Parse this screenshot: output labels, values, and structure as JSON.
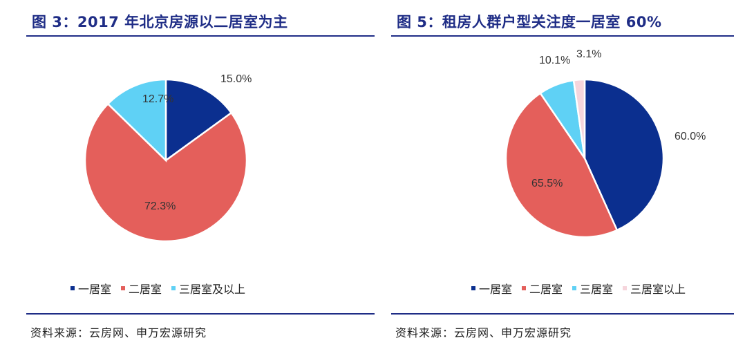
{
  "chart_data": [
    {
      "type": "pie",
      "title": "图 3：2017 年北京房源以二居室为主",
      "categories": [
        "一居室",
        "二居室",
        "三居室及以上"
      ],
      "values": [
        15.0,
        72.3,
        12.7
      ],
      "labels": [
        "15.0%",
        "72.3%",
        "12.7%"
      ],
      "colors": [
        "#0b2f8f",
        "#e45f5b",
        "#5fd1f5"
      ],
      "legend": "bottom",
      "source": "资料来源：云房网、申万宏源研究"
    },
    {
      "type": "pie",
      "title": "图 5：租房人群户型关注度一居室 60%",
      "categories": [
        "一居室",
        "二居室",
        "三居室",
        "三居室以上"
      ],
      "values": [
        60.0,
        65.5,
        10.1,
        3.1
      ],
      "labels": [
        "60.0%",
        "65.5%",
        "10.1%",
        "3.1%"
      ],
      "colors": [
        "#0b2f8f",
        "#e45f5b",
        "#5fd1f5",
        "#f6d5dc"
      ],
      "legend": "bottom",
      "source": "资料来源：云房网、申万宏源研究"
    }
  ]
}
